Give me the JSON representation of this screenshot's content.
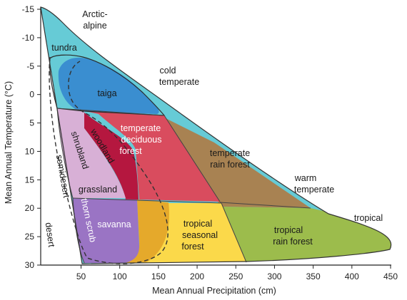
{
  "axes": {
    "x_label": "Mean Annual Precipitation (cm)",
    "y_label": "Mean Annual Temperature (°C)",
    "x_ticks": [
      "50",
      "100",
      "150",
      "200",
      "250",
      "300",
      "350",
      "400",
      "450"
    ],
    "y_ticks": [
      "-15",
      "-10",
      "-5",
      "0",
      "5",
      "10",
      "15",
      "20",
      "25",
      "30"
    ]
  },
  "zones": {
    "arctic_alpine": [
      "Arctic-",
      "alpine"
    ],
    "cold_temperate": [
      "cold",
      "temperate"
    ],
    "warm_temperate": [
      "warm",
      "temperate"
    ],
    "tropical": "tropical"
  },
  "biomes": {
    "tundra": "tundra",
    "taiga": "taiga",
    "temperate_deciduous_forest": [
      "temperate",
      "deciduous",
      "forest"
    ],
    "woodland": "woodland",
    "shrubland": "shrubland",
    "grassland": "grassland",
    "semidesert": "semidesert",
    "desert": "desert",
    "temperate_rain_forest": [
      "temperate",
      "rain forest"
    ],
    "savanna": "savanna",
    "thorn_scrub": "thorn scrub",
    "tropical_seasonal_forest": [
      "tropical",
      "seasonal",
      "forest"
    ],
    "tropical_rain_forest": [
      "tropical",
      "rain forest"
    ]
  },
  "colors": {
    "tundra": "#66cbd6",
    "taiga": "#3a8ed0",
    "deciduous": "#d94c5e",
    "woodland": "#b5173f",
    "shrubland": "#d8b0d6",
    "savanna": "#9a74c4",
    "seasonal": "#fbd94a",
    "seasonal_gold": "#e5a92b",
    "temp_rain": "#a88252",
    "trop_rain": "#9cbc4c"
  }
}
